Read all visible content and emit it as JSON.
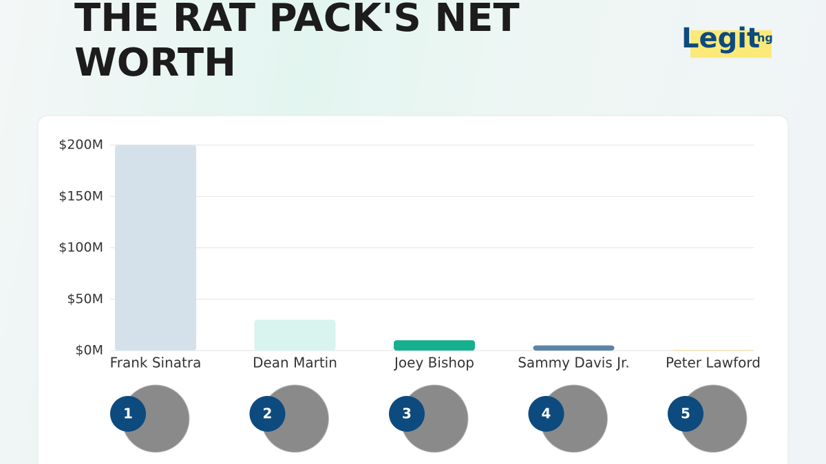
{
  "chart_data": {
    "type": "bar",
    "title": "THE RAT PACK'S NET WORTH",
    "logo": "Legit",
    "logo_suffix": "ng",
    "categories": [
      "Frank Sinatra",
      "Dean Martin",
      "Joey Bishop",
      "Sammy Davis Jr.",
      "Peter Lawford"
    ],
    "values": [
      200000000,
      30000000,
      10000000,
      5000000,
      500000
    ],
    "colors": [
      "#d5e1ea",
      "#d9f3ef",
      "#17b08f",
      "#5b84a8",
      "#f2d27a"
    ],
    "ranks": [
      1,
      2,
      3,
      4,
      5
    ],
    "ylim": [
      0,
      200000000
    ],
    "yticks": [
      {
        "value": 0,
        "label": "$0M"
      },
      {
        "value": 50000000,
        "label": "$50M"
      },
      {
        "value": 100000000,
        "label": "$100M"
      },
      {
        "value": 150000000,
        "label": "$150M"
      },
      {
        "value": 200000000,
        "label": "$200M"
      }
    ],
    "grid": true
  }
}
